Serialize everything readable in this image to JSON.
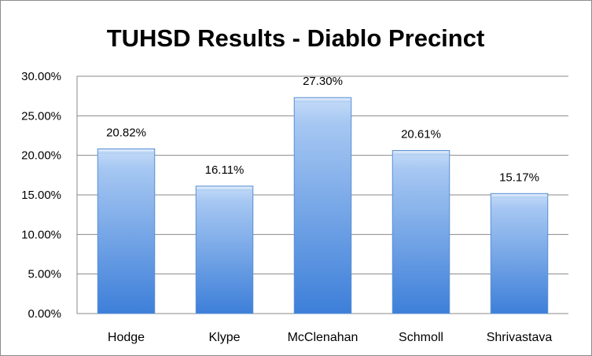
{
  "chart_data": {
    "type": "bar",
    "title": "TUHSD Results - Diablo Precinct",
    "categories": [
      "Hodge",
      "Klype",
      "McClenahan",
      "Schmoll",
      "Shrivastava"
    ],
    "values": [
      20.82,
      16.11,
      27.3,
      20.61,
      15.17
    ],
    "data_labels": [
      "20.82%",
      "16.11%",
      "27.30%",
      "20.61%",
      "15.17%"
    ],
    "y_ticks": [
      "0.00%",
      "5.00%",
      "10.00%",
      "15.00%",
      "20.00%",
      "25.00%",
      "30.00%"
    ],
    "ylim": [
      0,
      30
    ],
    "grid": true,
    "legend": "none",
    "bar_color_top": "#c6dcf8",
    "bar_color_bottom": "#3d7fd9",
    "bar_edge": "#5a8fd2"
  }
}
